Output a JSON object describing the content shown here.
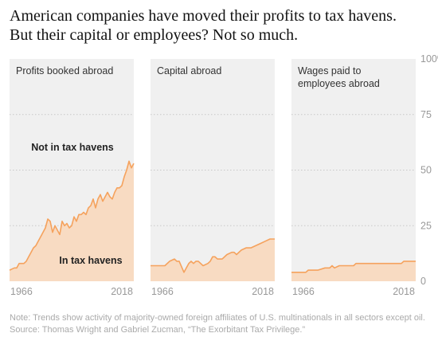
{
  "title": {
    "line1": "American companies have moved their profits to tax havens.",
    "line2": "But their capital or employees? Not so much."
  },
  "chart_data": {
    "type": "area",
    "x_range": [
      1966,
      2018
    ],
    "ylim": [
      0,
      100
    ],
    "y_ticks": [
      "0",
      "25",
      "50",
      "75",
      "100%"
    ],
    "x_tick_labels": [
      "1966",
      "2018"
    ],
    "grid": true,
    "annotations": {
      "upper": "Not in tax havens",
      "lower": "In tax havens"
    },
    "colors": {
      "panel_bg": "#f0f0f0",
      "fill": "#f8dbc2",
      "line": "#f5a25d",
      "grid": "#c8c8c8"
    },
    "panels": [
      {
        "label": [
          "Profits booked abroad"
        ],
        "series": [
          {
            "x": 1966,
            "y": 5
          },
          {
            "x": 1967,
            "y": 5.5
          },
          {
            "x": 1968,
            "y": 6
          },
          {
            "x": 1969,
            "y": 6
          },
          {
            "x": 1970,
            "y": 8
          },
          {
            "x": 1971,
            "y": 8
          },
          {
            "x": 1972,
            "y": 8
          },
          {
            "x": 1973,
            "y": 9
          },
          {
            "x": 1974,
            "y": 11
          },
          {
            "x": 1975,
            "y": 13
          },
          {
            "x": 1976,
            "y": 15
          },
          {
            "x": 1977,
            "y": 16
          },
          {
            "x": 1978,
            "y": 18
          },
          {
            "x": 1979,
            "y": 20
          },
          {
            "x": 1980,
            "y": 22
          },
          {
            "x": 1981,
            "y": 24
          },
          {
            "x": 1982,
            "y": 28
          },
          {
            "x": 1983,
            "y": 27
          },
          {
            "x": 1984,
            "y": 22
          },
          {
            "x": 1985,
            "y": 25
          },
          {
            "x": 1986,
            "y": 23
          },
          {
            "x": 1987,
            "y": 21
          },
          {
            "x": 1988,
            "y": 27
          },
          {
            "x": 1989,
            "y": 25
          },
          {
            "x": 1990,
            "y": 26
          },
          {
            "x": 1991,
            "y": 24
          },
          {
            "x": 1992,
            "y": 25
          },
          {
            "x": 1993,
            "y": 29
          },
          {
            "x": 1994,
            "y": 27
          },
          {
            "x": 1995,
            "y": 30
          },
          {
            "x": 1996,
            "y": 30
          },
          {
            "x": 1997,
            "y": 31
          },
          {
            "x": 1998,
            "y": 30
          },
          {
            "x": 1999,
            "y": 33
          },
          {
            "x": 2000,
            "y": 34
          },
          {
            "x": 2001,
            "y": 37
          },
          {
            "x": 2002,
            "y": 33
          },
          {
            "x": 2003,
            "y": 37
          },
          {
            "x": 2004,
            "y": 39
          },
          {
            "x": 2005,
            "y": 36
          },
          {
            "x": 2006,
            "y": 38
          },
          {
            "x": 2007,
            "y": 40
          },
          {
            "x": 2008,
            "y": 38
          },
          {
            "x": 2009,
            "y": 37
          },
          {
            "x": 2010,
            "y": 40
          },
          {
            "x": 2011,
            "y": 42
          },
          {
            "x": 2012,
            "y": 42
          },
          {
            "x": 2013,
            "y": 43
          },
          {
            "x": 2014,
            "y": 47
          },
          {
            "x": 2015,
            "y": 50
          },
          {
            "x": 2016,
            "y": 54
          },
          {
            "x": 2017,
            "y": 51
          },
          {
            "x": 2018,
            "y": 53
          }
        ]
      },
      {
        "label": [
          "Capital abroad"
        ],
        "series": [
          {
            "x": 1966,
            "y": 7
          },
          {
            "x": 1968,
            "y": 7
          },
          {
            "x": 1970,
            "y": 7
          },
          {
            "x": 1972,
            "y": 7
          },
          {
            "x": 1974,
            "y": 9
          },
          {
            "x": 1976,
            "y": 10
          },
          {
            "x": 1977,
            "y": 9
          },
          {
            "x": 1978,
            "y": 9
          },
          {
            "x": 1980,
            "y": 4
          },
          {
            "x": 1981,
            "y": 6
          },
          {
            "x": 1982,
            "y": 8
          },
          {
            "x": 1983,
            "y": 9
          },
          {
            "x": 1984,
            "y": 8
          },
          {
            "x": 1985,
            "y": 9
          },
          {
            "x": 1986,
            "y": 9
          },
          {
            "x": 1987,
            "y": 8
          },
          {
            "x": 1988,
            "y": 7
          },
          {
            "x": 1990,
            "y": 8
          },
          {
            "x": 1991,
            "y": 9
          },
          {
            "x": 1992,
            "y": 11
          },
          {
            "x": 1993,
            "y": 11
          },
          {
            "x": 1994,
            "y": 10
          },
          {
            "x": 1996,
            "y": 10
          },
          {
            "x": 1998,
            "y": 12
          },
          {
            "x": 2000,
            "y": 13
          },
          {
            "x": 2001,
            "y": 13
          },
          {
            "x": 2002,
            "y": 12
          },
          {
            "x": 2004,
            "y": 14
          },
          {
            "x": 2006,
            "y": 15
          },
          {
            "x": 2008,
            "y": 15
          },
          {
            "x": 2010,
            "y": 16
          },
          {
            "x": 2012,
            "y": 17
          },
          {
            "x": 2014,
            "y": 18
          },
          {
            "x": 2016,
            "y": 19
          },
          {
            "x": 2018,
            "y": 19
          }
        ]
      },
      {
        "label": [
          "Wages paid to",
          "employees abroad"
        ],
        "series": [
          {
            "x": 1966,
            "y": 4
          },
          {
            "x": 1970,
            "y": 4
          },
          {
            "x": 1972,
            "y": 4
          },
          {
            "x": 1973,
            "y": 5
          },
          {
            "x": 1976,
            "y": 5
          },
          {
            "x": 1977,
            "y": 5
          },
          {
            "x": 1980,
            "y": 6
          },
          {
            "x": 1982,
            "y": 6
          },
          {
            "x": 1983,
            "y": 7
          },
          {
            "x": 1984,
            "y": 6
          },
          {
            "x": 1986,
            "y": 7
          },
          {
            "x": 1990,
            "y": 7
          },
          {
            "x": 1992,
            "y": 7
          },
          {
            "x": 1993,
            "y": 8
          },
          {
            "x": 2000,
            "y": 8
          },
          {
            "x": 2008,
            "y": 8
          },
          {
            "x": 2010,
            "y": 8
          },
          {
            "x": 2012,
            "y": 8
          },
          {
            "x": 2013,
            "y": 9
          },
          {
            "x": 2015,
            "y": 9
          },
          {
            "x": 2018,
            "y": 9
          }
        ]
      }
    ]
  },
  "footer": {
    "note": "Note: Trends show activity of majority-owned foreign affiliates of U.S. multinationals in all sectors except oil.",
    "source": "Source: Thomas Wright and Gabriel Zucman, “The Exorbitant Tax Privilege.”"
  }
}
